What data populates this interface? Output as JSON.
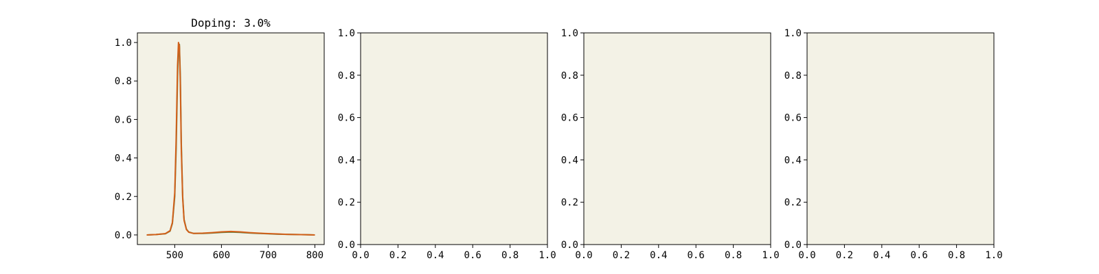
{
  "chart_data": [
    {
      "type": "line",
      "title": "Doping: 3.0%",
      "xlabel": "",
      "ylabel": "",
      "xlim": [
        420,
        820
      ],
      "ylim": [
        -0.05,
        1.05
      ],
      "xticks": [
        500,
        600,
        700,
        800
      ],
      "yticks": [
        0.0,
        0.2,
        0.4,
        0.6,
        0.8,
        1.0
      ],
      "xtick_labels": [
        "500",
        "600",
        "700",
        "800"
      ],
      "ytick_labels": [
        "0.0",
        "0.2",
        "0.4",
        "0.6",
        "0.8",
        "1.0"
      ],
      "grid": false,
      "series": [
        {
          "color": "#5f7a3c",
          "x": [
            440,
            460,
            480,
            490,
            495,
            500,
            503,
            506,
            508,
            510,
            512,
            514,
            517,
            520,
            525,
            530,
            540,
            560,
            580,
            600,
            620,
            640,
            660,
            680,
            700,
            720,
            740,
            760,
            780,
            800
          ],
          "y": [
            0.0,
            0.002,
            0.006,
            0.02,
            0.06,
            0.2,
            0.45,
            0.82,
            0.97,
            0.99,
            0.82,
            0.48,
            0.2,
            0.08,
            0.03,
            0.015,
            0.008,
            0.008,
            0.01,
            0.013,
            0.015,
            0.013,
            0.01,
            0.008,
            0.006,
            0.004,
            0.003,
            0.002,
            0.001,
            0.0
          ]
        },
        {
          "color": "#d2601a",
          "x": [
            440,
            460,
            480,
            490,
            495,
            500,
            503,
            506,
            508,
            510,
            512,
            514,
            517,
            520,
            525,
            530,
            540,
            560,
            580,
            600,
            620,
            640,
            660,
            680,
            700,
            720,
            740,
            760,
            780,
            800
          ],
          "y": [
            0.0,
            0.002,
            0.007,
            0.022,
            0.065,
            0.22,
            0.5,
            0.88,
            1.0,
            0.98,
            0.78,
            0.45,
            0.19,
            0.075,
            0.028,
            0.014,
            0.008,
            0.009,
            0.012,
            0.016,
            0.018,
            0.016,
            0.012,
            0.009,
            0.007,
            0.005,
            0.003,
            0.002,
            0.001,
            0.0
          ]
        }
      ]
    },
    {
      "type": "line",
      "title": "",
      "xlim": [
        0.0,
        1.0
      ],
      "ylim": [
        0.0,
        1.0
      ],
      "xticks": [
        0.0,
        0.2,
        0.4,
        0.6,
        0.8,
        1.0
      ],
      "yticks": [
        0.0,
        0.2,
        0.4,
        0.6,
        0.8,
        1.0
      ],
      "xtick_labels": [
        "0.0",
        "0.2",
        "0.4",
        "0.6",
        "0.8",
        "1.0"
      ],
      "ytick_labels": [
        "0.0",
        "0.2",
        "0.4",
        "0.6",
        "0.8",
        "1.0"
      ],
      "grid": false,
      "series": []
    },
    {
      "type": "line",
      "title": "",
      "xlim": [
        0.0,
        1.0
      ],
      "ylim": [
        0.0,
        1.0
      ],
      "xticks": [
        0.0,
        0.2,
        0.4,
        0.6,
        0.8,
        1.0
      ],
      "yticks": [
        0.0,
        0.2,
        0.4,
        0.6,
        0.8,
        1.0
      ],
      "xtick_labels": [
        "0.0",
        "0.2",
        "0.4",
        "0.6",
        "0.8",
        "1.0"
      ],
      "ytick_labels": [
        "0.0",
        "0.2",
        "0.4",
        "0.6",
        "0.8",
        "1.0"
      ],
      "grid": false,
      "series": []
    },
    {
      "type": "line",
      "title": "",
      "xlim": [
        0.0,
        1.0
      ],
      "ylim": [
        0.0,
        1.0
      ],
      "xticks": [
        0.0,
        0.2,
        0.4,
        0.6,
        0.8,
        1.0
      ],
      "yticks": [
        0.0,
        0.2,
        0.4,
        0.6,
        0.8,
        1.0
      ],
      "xtick_labels": [
        "0.0",
        "0.2",
        "0.4",
        "0.6",
        "0.8",
        "1.0"
      ],
      "ytick_labels": [
        "0.0",
        "0.2",
        "0.4",
        "0.6",
        "0.8",
        "1.0"
      ],
      "grid": false,
      "series": []
    }
  ],
  "style": {
    "axes_background": "#f3f2e6",
    "axis_color": "#000000"
  }
}
